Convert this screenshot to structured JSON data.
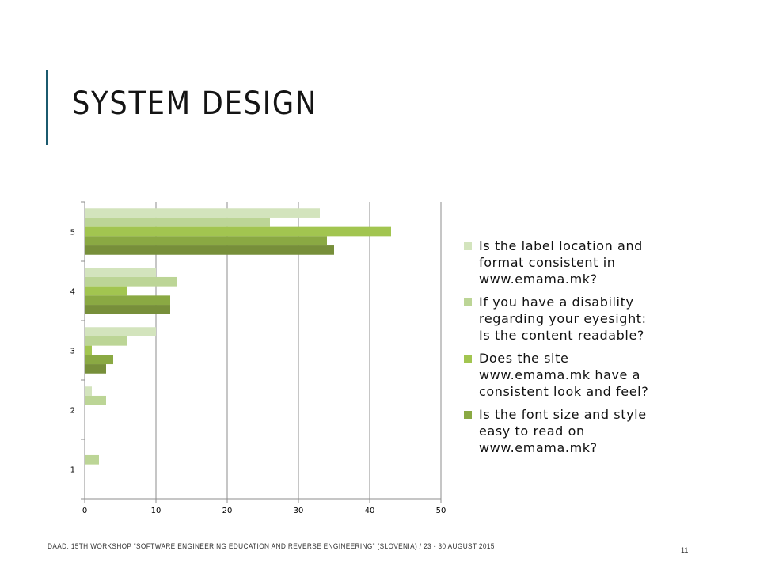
{
  "slide": {
    "title": "SYSTEM DESIGN",
    "footer": "DAAD: 15TH WORKSHOP “SOFTWARE ENGINEERING EDUCATION AND REVERSE ENGINEERING” (SLOVENIA) / 23 - 30 AUGUST 2015",
    "page_number": "11",
    "accent_color": "#1b5a6e"
  },
  "chart_data": {
    "type": "bar",
    "orientation": "horizontal",
    "categories": [
      "1",
      "2",
      "3",
      "4",
      "5"
    ],
    "xlim": [
      0,
      50
    ],
    "xticks": [
      "0",
      "10",
      "20",
      "30",
      "40",
      "50"
    ],
    "grid": true,
    "legend_position": "right",
    "series": [
      {
        "name": "Is the label location and format consistent in www.emama.mk?",
        "color": "#d3e4bd",
        "values": [
          0,
          1,
          10,
          10,
          33
        ]
      },
      {
        "name": "If you have a disability regarding your eyesight: Is the content readable?",
        "color": "#bcd596",
        "values": [
          2,
          3,
          6,
          13,
          26
        ]
      },
      {
        "name": "Does the site www.emama.mk have a consistent look and feel?",
        "color": "#a2c550",
        "values": [
          0,
          0,
          1,
          6,
          43
        ]
      },
      {
        "name": "Is the font size and style easy to read on www.emama.mk?",
        "color": "#8aa943",
        "values": [
          0,
          0,
          4,
          12,
          34
        ]
      },
      {
        "name": "",
        "color": "#778f3a",
        "values": [
          0,
          0,
          3,
          12,
          35
        ]
      }
    ]
  }
}
